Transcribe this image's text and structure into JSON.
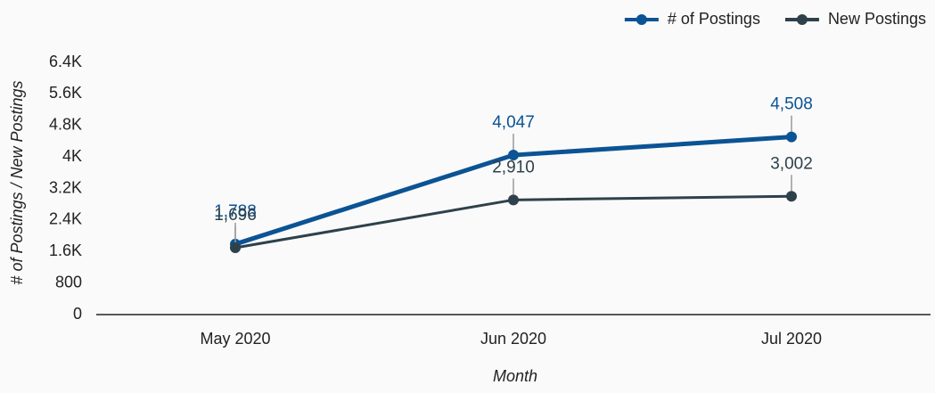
{
  "chart_data": {
    "type": "line",
    "x_label": "Month",
    "y_label": "# of Postings / New Postings",
    "categories": [
      "May 2020",
      "Jun 2020",
      "Jul 2020"
    ],
    "series": [
      {
        "name": "# of Postings",
        "color": "#0b5394",
        "values": [
          1788,
          4047,
          4508
        ],
        "value_labels": [
          "1,788",
          "4,047",
          "4,508"
        ]
      },
      {
        "name": "New Postings",
        "color": "#2e414a",
        "values": [
          1696,
          2910,
          3002
        ],
        "value_labels": [
          "1,696",
          "2,910",
          "3,002"
        ]
      }
    ],
    "ylim": [
      0,
      6400
    ],
    "yticks": [
      0,
      800,
      {
        "value": 1600,
        "label": "1.6K"
      },
      {
        "value": 2400,
        "label": "2.4K"
      },
      {
        "value": 3200,
        "label": "3.2K"
      },
      {
        "value": 4000,
        "label": "4K"
      },
      {
        "value": 4800,
        "label": "4.8K"
      },
      {
        "value": 5600,
        "label": "5.6K"
      },
      {
        "value": 6400,
        "label": "6.4K"
      }
    ],
    "legend": "top-right"
  }
}
